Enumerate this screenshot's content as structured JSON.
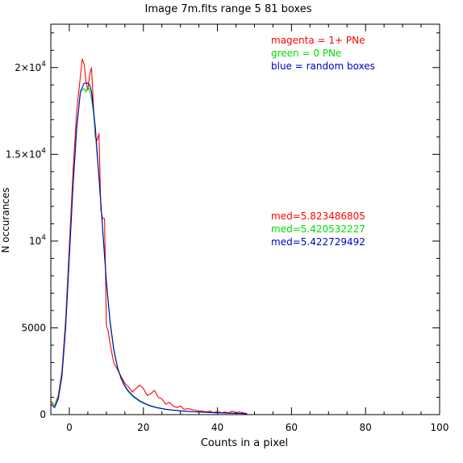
{
  "chart_data": {
    "type": "line",
    "title": "Image 7m.fits   range 5    81 boxes",
    "xlabel": "Counts in a pixel",
    "ylabel": "N occurances",
    "xlim": [
      -5,
      100
    ],
    "ylim": [
      0,
      22500
    ],
    "grid": false,
    "legend_position": "top-right",
    "x_ticks": [
      {
        "value": 0,
        "label": "0"
      },
      {
        "value": 20,
        "label": "20"
      },
      {
        "value": 40,
        "label": "40"
      },
      {
        "value": 60,
        "label": "60"
      },
      {
        "value": 80,
        "label": "80"
      },
      {
        "value": 100,
        "label": "100"
      }
    ],
    "y_ticks": [
      {
        "value": 0,
        "mantissa": "0",
        "exp": ""
      },
      {
        "value": 5000,
        "mantissa": "5000",
        "exp": ""
      },
      {
        "value": 10000,
        "mantissa": "10",
        "exp": "4"
      },
      {
        "value": 15000,
        "mantissa": "1.5×10",
        "exp": "4"
      },
      {
        "value": 20000,
        "mantissa": "2×10",
        "exp": "4"
      }
    ],
    "legend": [
      {
        "text": "magenta = 1+ PNe",
        "color": "#ff0000"
      },
      {
        "text": "green = 0 PNe",
        "color": "#00dd00"
      },
      {
        "text": "blue = random boxes",
        "color": "#0000cc"
      }
    ],
    "medians": [
      {
        "text": "med=5.823486805",
        "color": "#ff0000"
      },
      {
        "text": "med=5.420532227",
        "color": "#00dd00"
      },
      {
        "text": "med=5.422729492",
        "color": "#0000cc"
      }
    ],
    "series": [
      {
        "color": "#ff0000",
        "x": [
          -5,
          -4,
          -3,
          -2,
          -1,
          0,
          1,
          2,
          3,
          3.5,
          4,
          4.5,
          5,
          5.5,
          6,
          6.5,
          7,
          7.5,
          8,
          8.5,
          9,
          9.5,
          10,
          10.5,
          11,
          12,
          13,
          14,
          15,
          16,
          17,
          18,
          19,
          20,
          21,
          22,
          23,
          24,
          25,
          26,
          27,
          28,
          29,
          30,
          31,
          32,
          33,
          34,
          35,
          36,
          37,
          38,
          39,
          40,
          41,
          42,
          43,
          44,
          45,
          46,
          47,
          48
        ],
        "y": [
          800,
          500,
          1100,
          2500,
          5500,
          9800,
          14000,
          17500,
          19500,
          20500,
          20200,
          19200,
          18700,
          19600,
          20000,
          17800,
          16000,
          15800,
          16200,
          11800,
          11300,
          11300,
          5100,
          4800,
          4100,
          3000,
          2600,
          2200,
          1800,
          1600,
          1300,
          1500,
          1700,
          1500,
          1100,
          1200,
          1400,
          1000,
          900,
          600,
          700,
          500,
          400,
          500,
          300,
          350,
          300,
          250,
          200,
          200,
          150,
          200,
          100,
          200,
          100,
          150,
          100,
          200,
          100,
          150,
          100,
          50
        ]
      },
      {
        "color": "#00dd00",
        "x": [
          -5,
          -4,
          -3,
          -2,
          -1,
          0,
          1,
          2,
          3,
          4,
          4.5,
          5,
          5.5,
          6,
          6.5,
          7,
          8,
          9,
          10,
          11,
          12,
          13,
          14,
          15,
          16,
          17,
          18,
          19,
          20,
          22,
          24,
          26,
          28,
          30,
          32,
          34,
          36,
          38,
          40,
          42,
          44,
          46,
          48
        ],
        "y": [
          700,
          500,
          1000,
          2300,
          5200,
          9300,
          13300,
          16600,
          18600,
          18800,
          18600,
          18900,
          18700,
          18200,
          17400,
          16300,
          13600,
          10600,
          7600,
          5300,
          3700,
          2700,
          2050,
          1600,
          1300,
          1080,
          900,
          760,
          650,
          480,
          370,
          300,
          250,
          210,
          180,
          160,
          140,
          120,
          100,
          90,
          80,
          70,
          50
        ]
      },
      {
        "color": "#0000cc",
        "x": [
          -5,
          -4,
          -3,
          -2,
          -1,
          0,
          1,
          2,
          3,
          4,
          5,
          5.5,
          6,
          7,
          8,
          9,
          10,
          11,
          12,
          13,
          14,
          15,
          16,
          17,
          18,
          19,
          20,
          22,
          24,
          26,
          28,
          30,
          32,
          34,
          36,
          38,
          40,
          42,
          44,
          46,
          48
        ],
        "y": [
          600,
          400,
          900,
          2200,
          5000,
          9100,
          13100,
          16500,
          18600,
          19100,
          19100,
          19000,
          18600,
          16600,
          13700,
          10700,
          7700,
          5400,
          3800,
          2750,
          2100,
          1650,
          1350,
          1120,
          950,
          800,
          680,
          500,
          390,
          310,
          260,
          220,
          190,
          165,
          145,
          125,
          105,
          92,
          80,
          70,
          50
        ]
      }
    ]
  }
}
